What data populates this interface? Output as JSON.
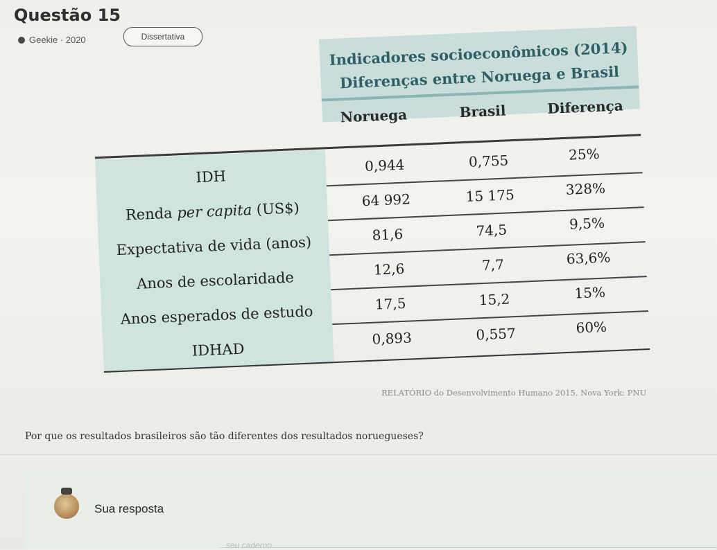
{
  "question": {
    "title": "Questão 15",
    "source_tag": "Geekie · 2020",
    "type_tag": "Dissertativa",
    "prompt": "Por que os resultados brasileiros são tão diferentes dos resultados noruegueses?"
  },
  "table": {
    "header_line1": "Indicadores socioeconômicos (2014)",
    "header_line2": "Diferenças entre Noruega e Brasil",
    "col_norway": "Noruega",
    "col_brazil": "Brasil",
    "col_diff": "Diferença",
    "rows": [
      {
        "label": "IDH",
        "norway": "0,944",
        "brazil": "0,755",
        "diff": "25%"
      },
      {
        "label_pre": "Renda ",
        "label_em": "per capita",
        "label_post": " (US$)",
        "norway": "64 992",
        "brazil": "15 175",
        "diff": "328%"
      },
      {
        "label": "Expectativa de vida (anos)",
        "norway": "81,6",
        "brazil": "74,5",
        "diff": "9,5%"
      },
      {
        "label": "Anos de escolaridade",
        "norway": "12,6",
        "brazil": "7,7",
        "diff": "63,6%"
      },
      {
        "label": "Anos esperados de estudo",
        "norway": "17,5",
        "brazil": "15,2",
        "diff": "15%"
      },
      {
        "label": "IDHAD",
        "norway": "0,893",
        "brazil": "0,557",
        "diff": "60%"
      }
    ],
    "source": "RELATÓRIO do Desenvolvimento Humano 2015. Nova York: PNU"
  },
  "answer": {
    "label": "Sua resposta",
    "faded_text": "seu caderno"
  },
  "icons": {
    "avatar": "user-avatar-icon",
    "source_dot": "bullet-icon"
  }
}
